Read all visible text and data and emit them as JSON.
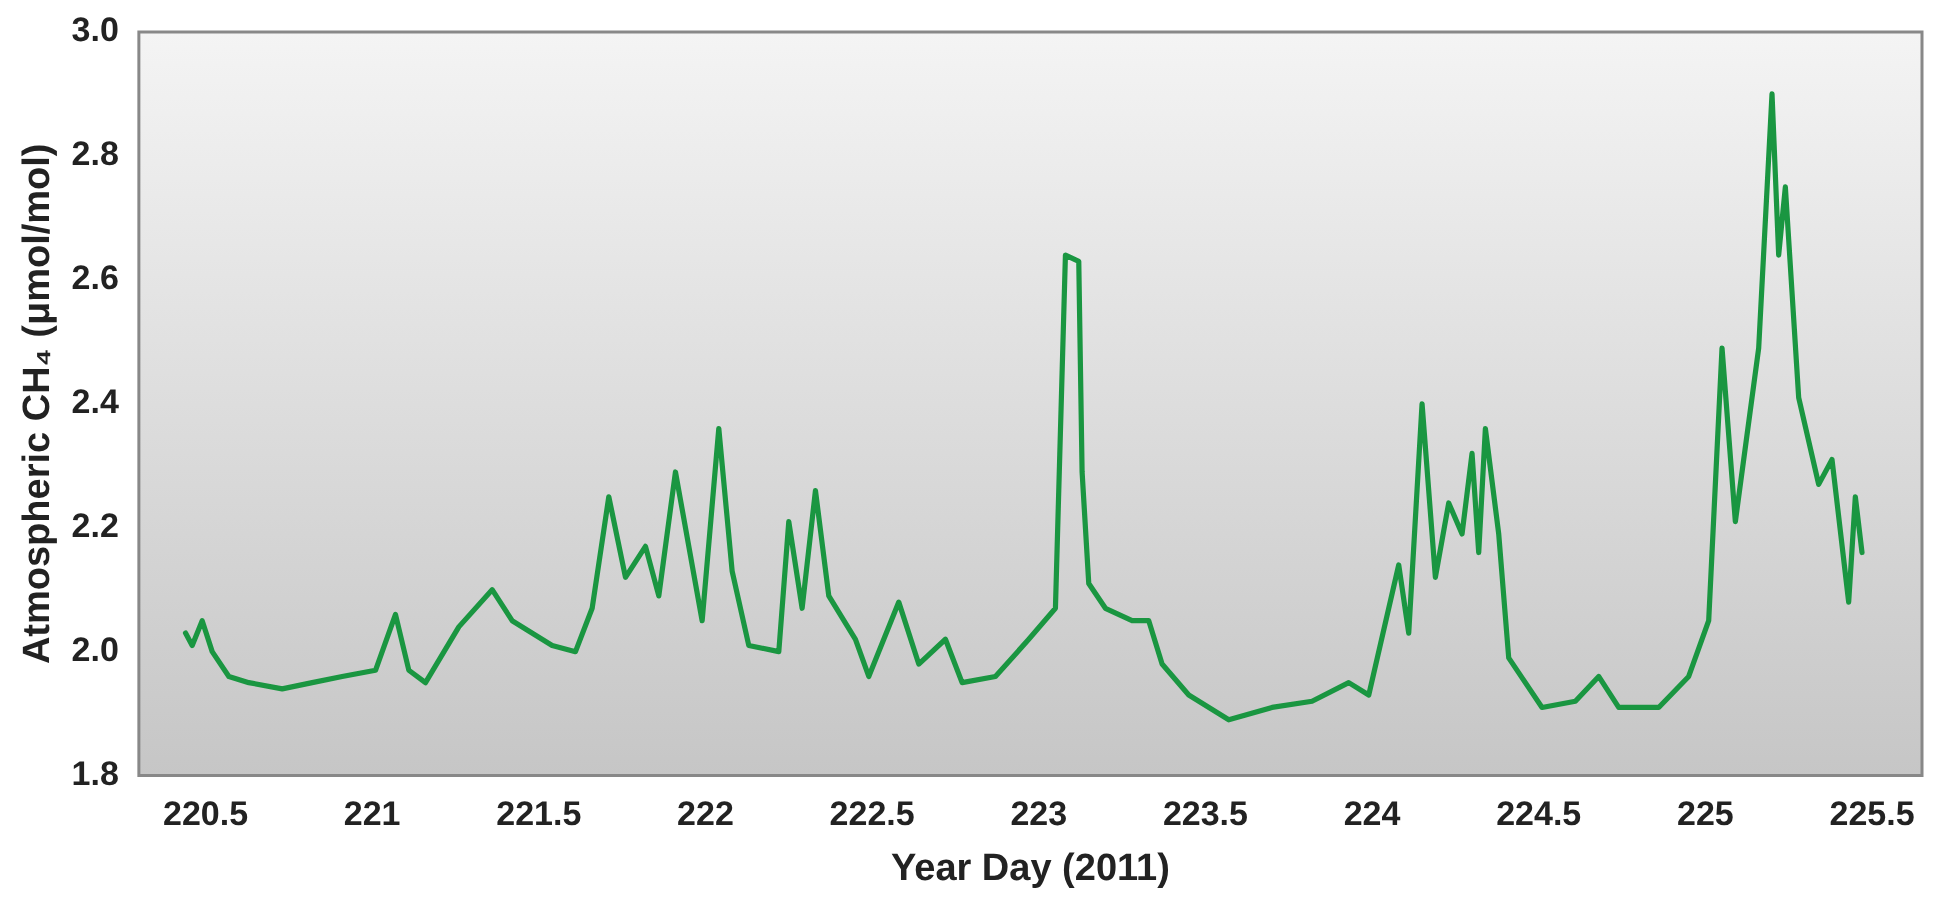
{
  "chart_data": {
    "type": "line",
    "xlabel": "Year Day (2011)",
    "ylabel": "Atmospheric CH₄ (μmol/mol)",
    "x": [
      220.44,
      220.46,
      220.49,
      220.52,
      220.57,
      220.63,
      220.73,
      220.82,
      220.91,
      221.01,
      221.07,
      221.11,
      221.16,
      221.26,
      221.36,
      221.42,
      221.54,
      221.61,
      221.66,
      221.71,
      221.76,
      221.82,
      221.86,
      221.91,
      221.99,
      222.04,
      222.08,
      222.13,
      222.22,
      222.25,
      222.29,
      222.33,
      222.37,
      222.45,
      222.49,
      222.58,
      222.64,
      222.72,
      222.77,
      222.87,
      222.97,
      223.05,
      223.08,
      223.12,
      223.13,
      223.15,
      223.2,
      223.28,
      223.33,
      223.37,
      223.45,
      223.57,
      223.7,
      223.82,
      223.93,
      223.99,
      224.08,
      224.11,
      224.15,
      224.19,
      224.23,
      224.27,
      224.3,
      224.32,
      224.34,
      224.38,
      224.41,
      224.51,
      224.61,
      224.68,
      224.74,
      224.86,
      224.95,
      225.01,
      225.05,
      225.09,
      225.16,
      225.2,
      225.22,
      225.24,
      225.28,
      225.34,
      225.38,
      225.43,
      225.45,
      225.47
    ],
    "series": [
      {
        "color": "#1a9641",
        "values": [
          2.03,
          2.01,
          2.05,
          2.0,
          1.96,
          1.95,
          1.94,
          1.95,
          1.96,
          1.97,
          2.06,
          1.97,
          1.95,
          2.04,
          2.1,
          2.05,
          2.01,
          2.0,
          2.07,
          2.25,
          2.12,
          2.17,
          2.09,
          2.29,
          2.05,
          2.36,
          2.13,
          2.01,
          2.0,
          2.21,
          2.07,
          2.26,
          2.09,
          2.02,
          1.96,
          2.08,
          1.98,
          2.02,
          1.95,
          1.96,
          2.02,
          2.07,
          2.64,
          2.63,
          2.29,
          2.11,
          2.07,
          2.05,
          2.05,
          1.98,
          1.93,
          1.89,
          1.91,
          1.92,
          1.95,
          1.93,
          2.14,
          2.03,
          2.4,
          2.12,
          2.24,
          2.19,
          2.32,
          2.16,
          2.36,
          2.19,
          1.99,
          1.91,
          1.92,
          1.96,
          1.91,
          1.91,
          1.96,
          2.05,
          2.49,
          2.21,
          2.49,
          2.9,
          2.64,
          2.75,
          2.41,
          2.27,
          2.31,
          2.08,
          2.25,
          2.16
        ]
      }
    ],
    "xlim": [
      220.3,
      225.65
    ],
    "xticks": [
      220.5,
      221,
      221.5,
      222,
      222.5,
      223,
      223.5,
      224,
      224.5,
      225,
      225.5
    ],
    "ylim": [
      1.8,
      3.0
    ],
    "yticks": [
      1.8,
      {
        "value": 2,
        "label": "2.0"
      },
      2.2,
      2.4,
      2.6,
      2.8,
      {
        "value": 3,
        "label": "3.0"
      }
    ],
    "grid": false,
    "legend": false,
    "marker": "none",
    "line_style": "solid"
  }
}
